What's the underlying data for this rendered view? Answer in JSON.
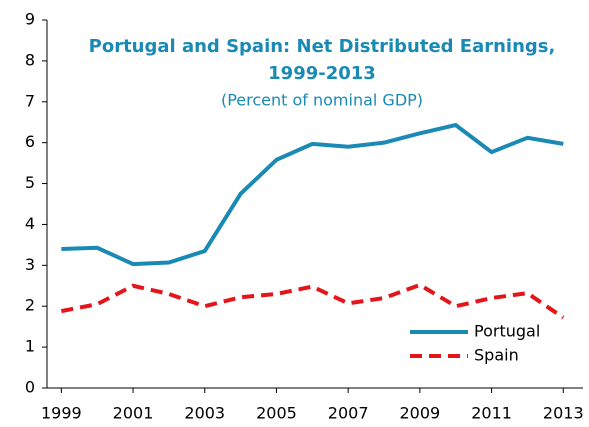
{
  "chart_data": {
    "type": "line",
    "title": [
      "Portugal and Spain: Net Distributed Earnings,",
      "1999-2013"
    ],
    "subtitle": "(Percent of nominal GDP)",
    "title_color": "#1a8ab5",
    "x": [
      1999,
      2000,
      2001,
      2002,
      2003,
      2004,
      2005,
      2006,
      2007,
      2008,
      2009,
      2010,
      2011,
      2012,
      2013
    ],
    "series": [
      {
        "name": "Portugal",
        "color": "#1a8ab5",
        "style": "solid",
        "values": [
          3.4,
          3.43,
          3.03,
          3.07,
          3.35,
          4.75,
          5.58,
          5.97,
          5.9,
          6.0,
          6.23,
          6.43,
          5.77,
          6.12,
          5.97
        ]
      },
      {
        "name": "Spain",
        "color": "#e3151a",
        "style": "dashed",
        "values": [
          1.88,
          2.05,
          2.5,
          2.3,
          2.0,
          2.22,
          2.3,
          2.48,
          2.07,
          2.2,
          2.52,
          2.0,
          2.2,
          2.32,
          1.72
        ]
      }
    ],
    "xlim": [
      1998.6,
      2013.55
    ],
    "xticks": [
      1999,
      2001,
      2003,
      2005,
      2007,
      2009,
      2011,
      2013
    ],
    "ylim": [
      0,
      9
    ],
    "yticks": [
      0,
      1,
      2,
      3,
      4,
      5,
      6,
      7,
      8,
      9
    ],
    "grid": false,
    "legend": "lower right"
  }
}
